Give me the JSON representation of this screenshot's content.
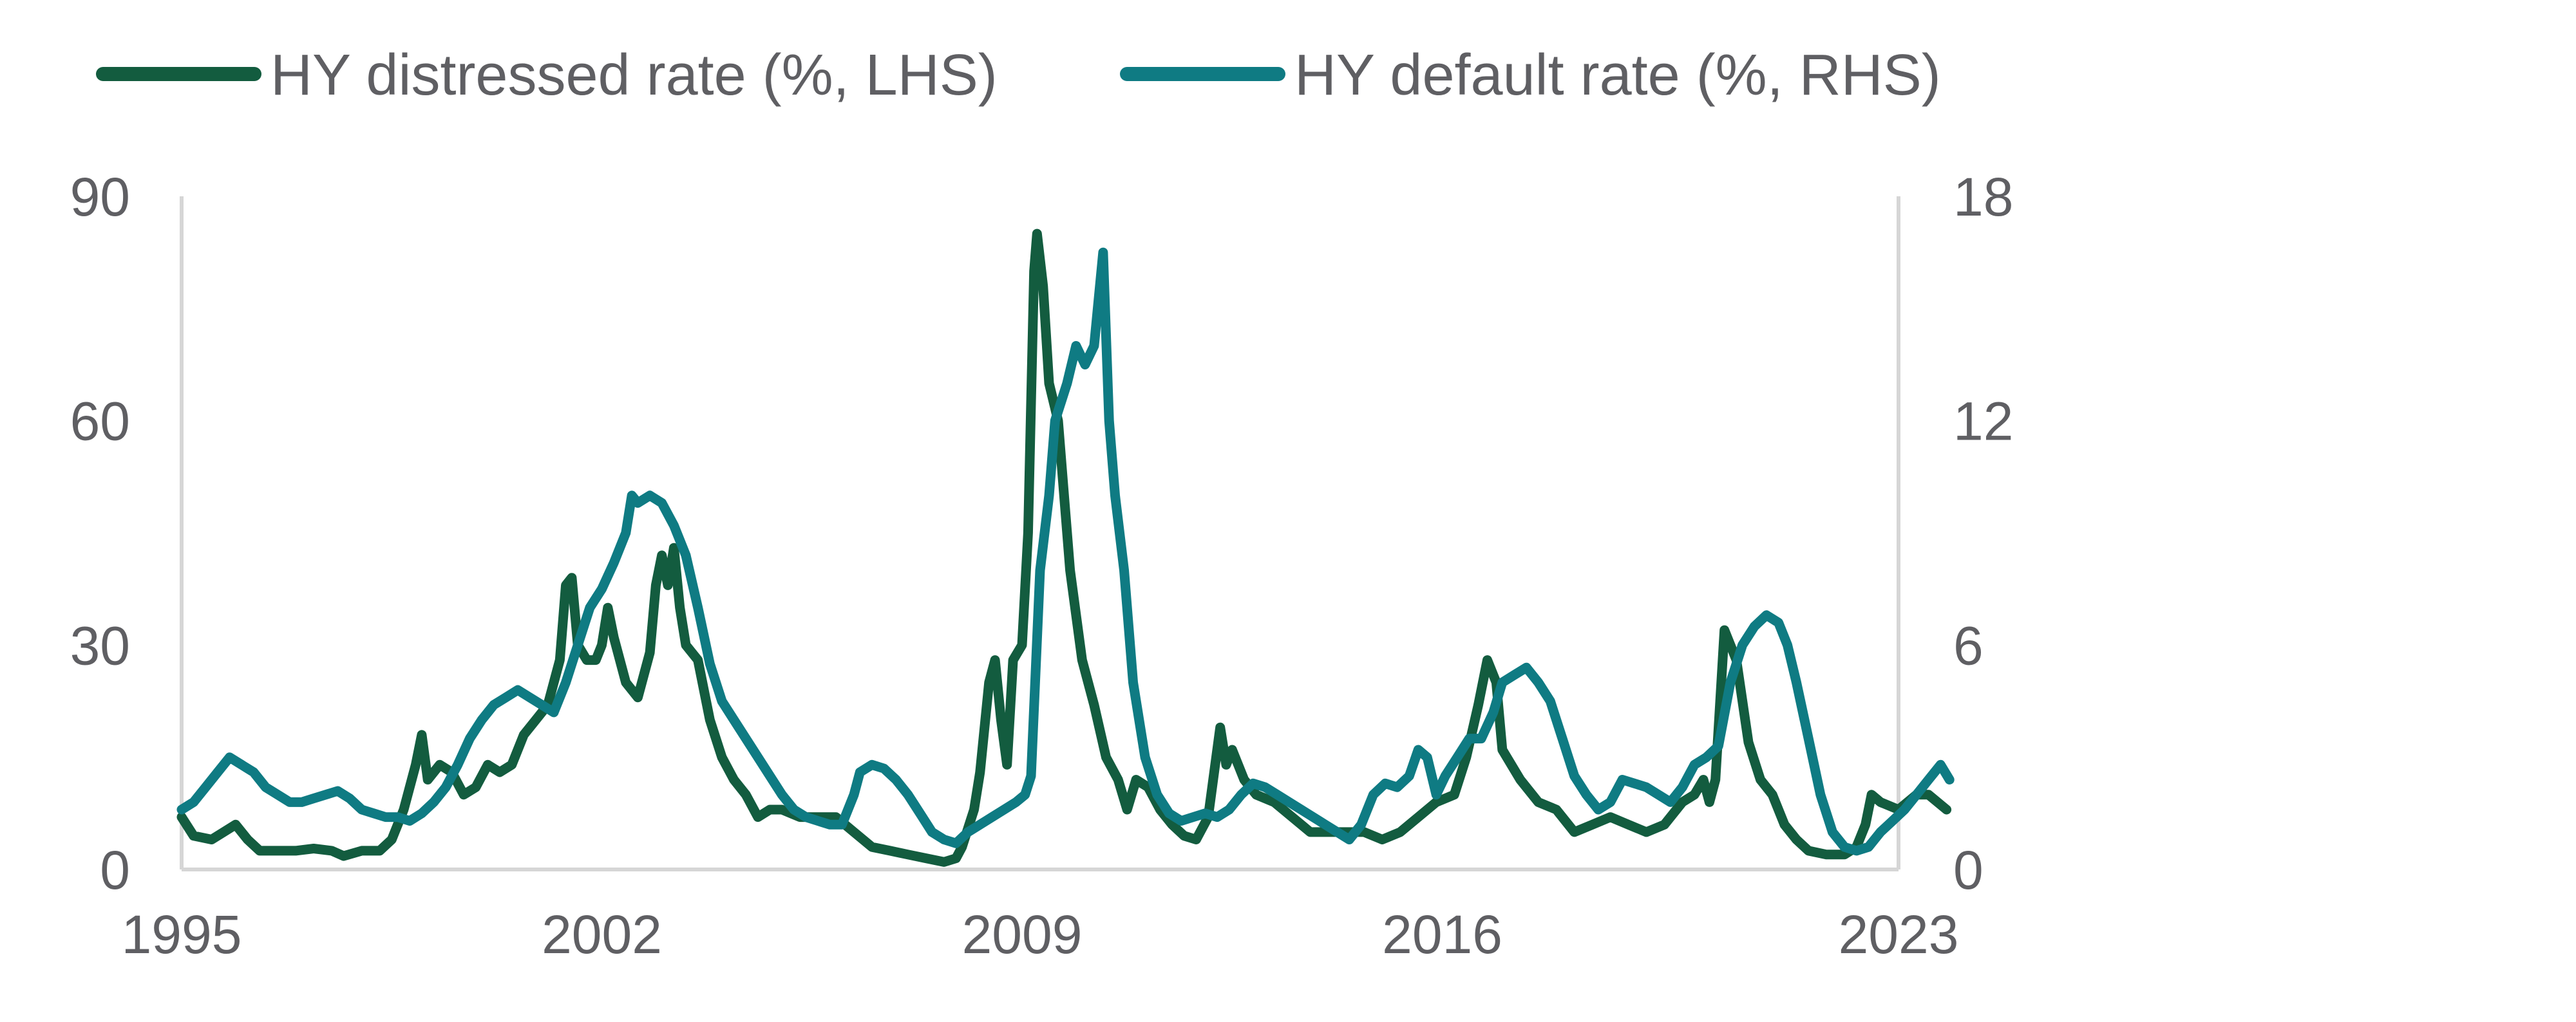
{
  "chart_data": {
    "type": "line",
    "legend_position": "top-left",
    "grid": false,
    "x_axis": {
      "ticks": [
        "1995",
        "2002",
        "2009",
        "2016",
        "2023"
      ],
      "range": [
        1995,
        2023.6
      ]
    },
    "y_left": {
      "ticks": [
        "0",
        "30",
        "60",
        "90"
      ],
      "range": [
        0,
        90
      ]
    },
    "y_right": {
      "ticks": [
        "0",
        "6",
        "12",
        "18"
      ],
      "range": [
        0,
        18
      ]
    },
    "series": [
      {
        "name": "HY distressed rate (%, LHS)",
        "axis": "left",
        "color": "#135c3f",
        "points": [
          [
            1995.0,
            7
          ],
          [
            1995.2,
            4.5
          ],
          [
            1995.5,
            4
          ],
          [
            1995.7,
            5
          ],
          [
            1995.9,
            6
          ],
          [
            1996.1,
            4
          ],
          [
            1996.3,
            2.5
          ],
          [
            1996.6,
            2.5
          ],
          [
            1996.9,
            2.5
          ],
          [
            1997.2,
            2.8
          ],
          [
            1997.5,
            2.5
          ],
          [
            1997.7,
            1.8
          ],
          [
            1998.0,
            2.5
          ],
          [
            1998.3,
            2.5
          ],
          [
            1998.5,
            4
          ],
          [
            1998.7,
            8
          ],
          [
            1998.9,
            14
          ],
          [
            1999.0,
            18
          ],
          [
            1999.1,
            12
          ],
          [
            1999.3,
            14
          ],
          [
            1999.5,
            13
          ],
          [
            1999.7,
            10
          ],
          [
            1999.9,
            11
          ],
          [
            2000.1,
            14
          ],
          [
            2000.3,
            13
          ],
          [
            2000.5,
            14
          ],
          [
            2000.7,
            18
          ],
          [
            2000.9,
            20
          ],
          [
            2001.1,
            22
          ],
          [
            2001.3,
            28
          ],
          [
            2001.4,
            38
          ],
          [
            2001.5,
            39
          ],
          [
            2001.6,
            30
          ],
          [
            2001.75,
            28
          ],
          [
            2001.9,
            28
          ],
          [
            2002.0,
            30
          ],
          [
            2002.1,
            35
          ],
          [
            2002.2,
            31
          ],
          [
            2002.4,
            25
          ],
          [
            2002.6,
            23
          ],
          [
            2002.8,
            29
          ],
          [
            2002.9,
            38
          ],
          [
            2003.0,
            42
          ],
          [
            2003.1,
            38
          ],
          [
            2003.2,
            43
          ],
          [
            2003.3,
            35
          ],
          [
            2003.4,
            30
          ],
          [
            2003.6,
            28
          ],
          [
            2003.8,
            20
          ],
          [
            2004.0,
            15
          ],
          [
            2004.2,
            12
          ],
          [
            2004.4,
            10
          ],
          [
            2004.6,
            7
          ],
          [
            2004.8,
            8
          ],
          [
            2005.0,
            8
          ],
          [
            2005.3,
            7
          ],
          [
            2005.6,
            7
          ],
          [
            2005.9,
            7
          ],
          [
            2006.2,
            5
          ],
          [
            2006.5,
            3
          ],
          [
            2006.8,
            2.5
          ],
          [
            2007.1,
            2
          ],
          [
            2007.4,
            1.5
          ],
          [
            2007.7,
            1
          ],
          [
            2007.9,
            1.5
          ],
          [
            2008.0,
            3
          ],
          [
            2008.2,
            8
          ],
          [
            2008.3,
            13
          ],
          [
            2008.45,
            25
          ],
          [
            2008.55,
            28
          ],
          [
            2008.65,
            20
          ],
          [
            2008.75,
            14
          ],
          [
            2008.85,
            28
          ],
          [
            2009.0,
            30
          ],
          [
            2009.1,
            45
          ],
          [
            2009.2,
            80
          ],
          [
            2009.25,
            85
          ],
          [
            2009.35,
            78
          ],
          [
            2009.45,
            65
          ],
          [
            2009.6,
            60
          ],
          [
            2009.8,
            40
          ],
          [
            2010.0,
            28
          ],
          [
            2010.2,
            22
          ],
          [
            2010.4,
            15
          ],
          [
            2010.6,
            12
          ],
          [
            2010.75,
            8
          ],
          [
            2010.9,
            12
          ],
          [
            2011.1,
            11
          ],
          [
            2011.3,
            8
          ],
          [
            2011.5,
            6
          ],
          [
            2011.7,
            4.5
          ],
          [
            2011.9,
            4
          ],
          [
            2012.1,
            7
          ],
          [
            2012.3,
            19
          ],
          [
            2012.4,
            14
          ],
          [
            2012.5,
            16
          ],
          [
            2012.7,
            12
          ],
          [
            2012.9,
            10
          ],
          [
            2013.2,
            9
          ],
          [
            2013.5,
            7
          ],
          [
            2013.8,
            5
          ],
          [
            2014.1,
            5
          ],
          [
            2014.4,
            5
          ],
          [
            2014.7,
            5
          ],
          [
            2015.0,
            4
          ],
          [
            2015.3,
            5
          ],
          [
            2015.6,
            7
          ],
          [
            2015.9,
            9
          ],
          [
            2016.2,
            10
          ],
          [
            2016.4,
            15
          ],
          [
            2016.6,
            22
          ],
          [
            2016.75,
            28
          ],
          [
            2016.9,
            25
          ],
          [
            2017.0,
            16
          ],
          [
            2017.3,
            12
          ],
          [
            2017.6,
            9
          ],
          [
            2017.9,
            8
          ],
          [
            2018.2,
            5
          ],
          [
            2018.5,
            6
          ],
          [
            2018.8,
            7
          ],
          [
            2019.1,
            6
          ],
          [
            2019.4,
            5
          ],
          [
            2019.7,
            6
          ],
          [
            2020.0,
            9
          ],
          [
            2020.2,
            10
          ],
          [
            2020.35,
            12
          ],
          [
            2020.45,
            9
          ],
          [
            2020.55,
            12
          ],
          [
            2020.7,
            32
          ],
          [
            2020.9,
            28
          ],
          [
            2021.1,
            17
          ],
          [
            2021.3,
            12
          ],
          [
            2021.5,
            10
          ],
          [
            2021.7,
            6
          ],
          [
            2021.9,
            4
          ],
          [
            2022.1,
            2.5
          ],
          [
            2022.4,
            2
          ],
          [
            2022.7,
            2
          ],
          [
            2022.9,
            3
          ],
          [
            2023.05,
            6
          ],
          [
            2023.15,
            10
          ],
          [
            2023.3,
            9
          ],
          [
            2023.6,
            8
          ],
          [
            2023.9,
            10
          ],
          [
            2024.1,
            10
          ],
          [
            2024.4,
            8
          ]
        ]
      },
      {
        "name": "HY default rate (%, RHS)",
        "axis": "right",
        "color": "#0f7b83",
        "points": [
          [
            1995.0,
            1.6
          ],
          [
            1995.2,
            1.8
          ],
          [
            1995.4,
            2.2
          ],
          [
            1995.6,
            2.6
          ],
          [
            1995.8,
            3
          ],
          [
            1996.0,
            2.8
          ],
          [
            1996.2,
            2.6
          ],
          [
            1996.4,
            2.2
          ],
          [
            1996.6,
            2
          ],
          [
            1996.8,
            1.8
          ],
          [
            1997.0,
            1.8
          ],
          [
            1997.2,
            1.9
          ],
          [
            1997.4,
            2
          ],
          [
            1997.6,
            2.1
          ],
          [
            1997.8,
            1.9
          ],
          [
            1998.0,
            1.6
          ],
          [
            1998.2,
            1.5
          ],
          [
            1998.4,
            1.4
          ],
          [
            1998.6,
            1.4
          ],
          [
            1998.8,
            1.3
          ],
          [
            1999.0,
            1.5
          ],
          [
            1999.2,
            1.8
          ],
          [
            1999.4,
            2.2
          ],
          [
            1999.6,
            2.8
          ],
          [
            1999.8,
            3.5
          ],
          [
            2000.0,
            4
          ],
          [
            2000.2,
            4.4
          ],
          [
            2000.4,
            4.6
          ],
          [
            2000.6,
            4.8
          ],
          [
            2000.8,
            4.6
          ],
          [
            2001.0,
            4.4
          ],
          [
            2001.2,
            4.2
          ],
          [
            2001.4,
            5
          ],
          [
            2001.6,
            6
          ],
          [
            2001.8,
            7
          ],
          [
            2002.0,
            7.5
          ],
          [
            2002.2,
            8.2
          ],
          [
            2002.4,
            9
          ],
          [
            2002.5,
            10
          ],
          [
            2002.6,
            9.8
          ],
          [
            2002.8,
            10
          ],
          [
            2003.0,
            9.8
          ],
          [
            2003.2,
            9.2
          ],
          [
            2003.4,
            8.4
          ],
          [
            2003.6,
            7
          ],
          [
            2003.8,
            5.5
          ],
          [
            2004.0,
            4.5
          ],
          [
            2004.2,
            4
          ],
          [
            2004.4,
            3.5
          ],
          [
            2004.6,
            3
          ],
          [
            2004.8,
            2.5
          ],
          [
            2005.0,
            2
          ],
          [
            2005.2,
            1.6
          ],
          [
            2005.4,
            1.4
          ],
          [
            2005.6,
            1.3
          ],
          [
            2005.8,
            1.2
          ],
          [
            2006.0,
            1.2
          ],
          [
            2006.2,
            2
          ],
          [
            2006.3,
            2.6
          ],
          [
            2006.5,
            2.8
          ],
          [
            2006.7,
            2.7
          ],
          [
            2006.9,
            2.4
          ],
          [
            2007.1,
            2
          ],
          [
            2007.3,
            1.5
          ],
          [
            2007.5,
            1
          ],
          [
            2007.7,
            0.8
          ],
          [
            2007.9,
            0.7
          ],
          [
            2008.1,
            1
          ],
          [
            2008.3,
            1.2
          ],
          [
            2008.5,
            1.4
          ],
          [
            2008.7,
            1.6
          ],
          [
            2008.9,
            1.8
          ],
          [
            2009.05,
            2
          ],
          [
            2009.15,
            2.5
          ],
          [
            2009.3,
            8
          ],
          [
            2009.45,
            10
          ],
          [
            2009.55,
            12
          ],
          [
            2009.75,
            13
          ],
          [
            2009.9,
            14
          ],
          [
            2010.05,
            13.5
          ],
          [
            2010.2,
            14
          ],
          [
            2010.35,
            16.5
          ],
          [
            2010.45,
            12
          ],
          [
            2010.55,
            10
          ],
          [
            2010.7,
            8
          ],
          [
            2010.85,
            5
          ],
          [
            2011.05,
            3
          ],
          [
            2011.25,
            2
          ],
          [
            2011.45,
            1.5
          ],
          [
            2011.65,
            1.3
          ],
          [
            2011.85,
            1.4
          ],
          [
            2012.05,
            1.5
          ],
          [
            2012.25,
            1.4
          ],
          [
            2012.45,
            1.6
          ],
          [
            2012.65,
            2
          ],
          [
            2012.85,
            2.3
          ],
          [
            2013.05,
            2.2
          ],
          [
            2013.25,
            2
          ],
          [
            2013.45,
            1.8
          ],
          [
            2013.65,
            1.6
          ],
          [
            2013.85,
            1.4
          ],
          [
            2014.05,
            1.2
          ],
          [
            2014.25,
            1
          ],
          [
            2014.45,
            0.8
          ],
          [
            2014.65,
            1.2
          ],
          [
            2014.85,
            2
          ],
          [
            2015.05,
            2.3
          ],
          [
            2015.25,
            2.2
          ],
          [
            2015.45,
            2.5
          ],
          [
            2015.6,
            3.2
          ],
          [
            2015.75,
            3
          ],
          [
            2015.9,
            2
          ],
          [
            2016.05,
            2.5
          ],
          [
            2016.25,
            3
          ],
          [
            2016.45,
            3.5
          ],
          [
            2016.65,
            3.5
          ],
          [
            2016.85,
            4.2
          ],
          [
            2017.0,
            5
          ],
          [
            2017.2,
            5.2
          ],
          [
            2017.4,
            5.4
          ],
          [
            2017.6,
            5
          ],
          [
            2017.8,
            4.5
          ],
          [
            2018.0,
            3.5
          ],
          [
            2018.2,
            2.5
          ],
          [
            2018.4,
            2
          ],
          [
            2018.6,
            1.6
          ],
          [
            2018.8,
            1.8
          ],
          [
            2019.0,
            2.4
          ],
          [
            2019.2,
            2.3
          ],
          [
            2019.4,
            2.2
          ],
          [
            2019.6,
            2
          ],
          [
            2019.8,
            1.8
          ],
          [
            2020.0,
            2.2
          ],
          [
            2020.2,
            2.8
          ],
          [
            2020.4,
            3
          ],
          [
            2020.6,
            3.3
          ],
          [
            2020.8,
            5
          ],
          [
            2021.0,
            6
          ],
          [
            2021.2,
            6.5
          ],
          [
            2021.4,
            6.8
          ],
          [
            2021.6,
            6.6
          ],
          [
            2021.75,
            6
          ],
          [
            2021.9,
            5
          ],
          [
            2022.1,
            3.5
          ],
          [
            2022.3,
            2
          ],
          [
            2022.5,
            1
          ],
          [
            2022.7,
            0.6
          ],
          [
            2022.9,
            0.5
          ],
          [
            2023.1,
            0.6
          ],
          [
            2023.3,
            1
          ],
          [
            2023.5,
            1.3
          ],
          [
            2023.7,
            1.6
          ],
          [
            2023.9,
            2
          ],
          [
            2024.1,
            2.4
          ],
          [
            2024.3,
            2.8
          ],
          [
            2024.45,
            2.4
          ]
        ]
      }
    ]
  }
}
